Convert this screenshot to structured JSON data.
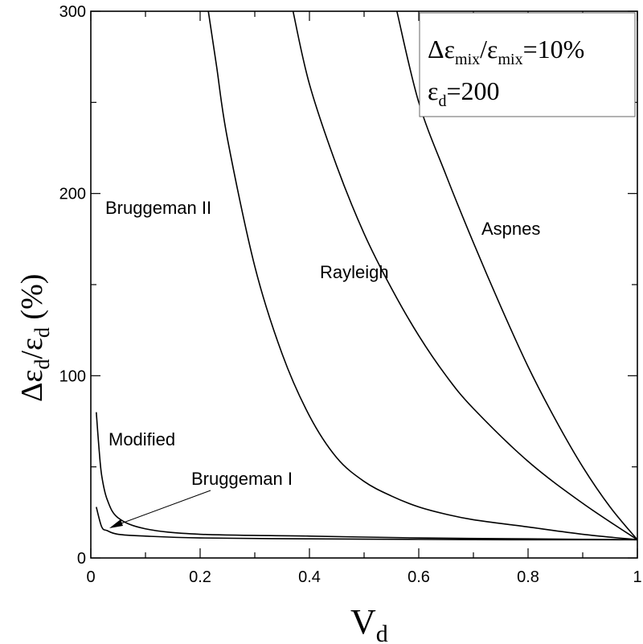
{
  "chart_data": {
    "type": "line",
    "xlim": [
      0,
      1
    ],
    "ylim": [
      0,
      300
    ],
    "x_ticks": [
      "0",
      "0.2",
      "0.4",
      "0.6",
      "0.8",
      "1"
    ],
    "y_ticks": [
      "0",
      "100",
      "200",
      "300"
    ],
    "grid": false,
    "xlabel": {
      "main": "V",
      "sub": "d"
    },
    "ylabel": {
      "p1": "Δε",
      "s1": "d",
      "p2": "/ε",
      "s2": "d",
      "p3": " (%)"
    },
    "annotation_box": {
      "line1": {
        "a": "Δε",
        "b": "mix",
        "c": "/ε",
        "d": "mix",
        "e": "=10%"
      },
      "line2": {
        "a": "ε",
        "b": "d",
        "c": "=200"
      }
    },
    "series": [
      {
        "name": "Aspnes",
        "x": [
          0.56,
          0.6,
          0.65,
          0.7,
          0.75,
          0.8,
          0.85,
          0.9,
          0.95,
          1.0
        ],
        "y": [
          300,
          250,
          210,
          173,
          138,
          105,
          76,
          50,
          28,
          10
        ]
      },
      {
        "name": "Rayleigh",
        "x": [
          0.37,
          0.4,
          0.45,
          0.5,
          0.55,
          0.6,
          0.65,
          0.7,
          0.8,
          0.9,
          1.0
        ],
        "y": [
          300,
          260,
          215,
          178,
          148,
          122,
          100,
          82,
          53,
          30,
          10
        ]
      },
      {
        "name": "Bruggeman II",
        "x": [
          0.215,
          0.23,
          0.25,
          0.3,
          0.35,
          0.4,
          0.45,
          0.5,
          0.55,
          0.6,
          0.65,
          0.7,
          0.8,
          0.9,
          1.0
        ],
        "y": [
          300,
          270,
          230,
          160,
          112,
          78,
          55,
          42,
          34,
          28,
          24,
          21,
          17,
          13,
          10
        ]
      },
      {
        "name": "Modified",
        "x": [
          0.01,
          0.015,
          0.02,
          0.03,
          0.05,
          0.1,
          0.2,
          0.4,
          0.6,
          0.8,
          1.0
        ],
        "y": [
          80,
          60,
          45,
          32,
          22,
          16,
          13,
          12,
          11,
          10.5,
          10
        ]
      },
      {
        "name": "Bruggeman I",
        "x": [
          0.01,
          0.02,
          0.03,
          0.05,
          0.1,
          0.2,
          0.4,
          0.6,
          0.8,
          1.0
        ],
        "y": [
          28,
          17,
          15,
          13,
          12,
          11,
          10.5,
          10.2,
          10,
          10
        ]
      }
    ],
    "labels": [
      {
        "series": "Aspnes",
        "text": "Aspnes"
      },
      {
        "series": "Rayleigh",
        "text": "Rayleigh"
      },
      {
        "series": "Bruggeman II",
        "text": "Bruggeman II"
      },
      {
        "series": "Modified",
        "text": "Modified"
      },
      {
        "series": "Bruggeman I",
        "text": "Bruggeman I"
      }
    ]
  }
}
